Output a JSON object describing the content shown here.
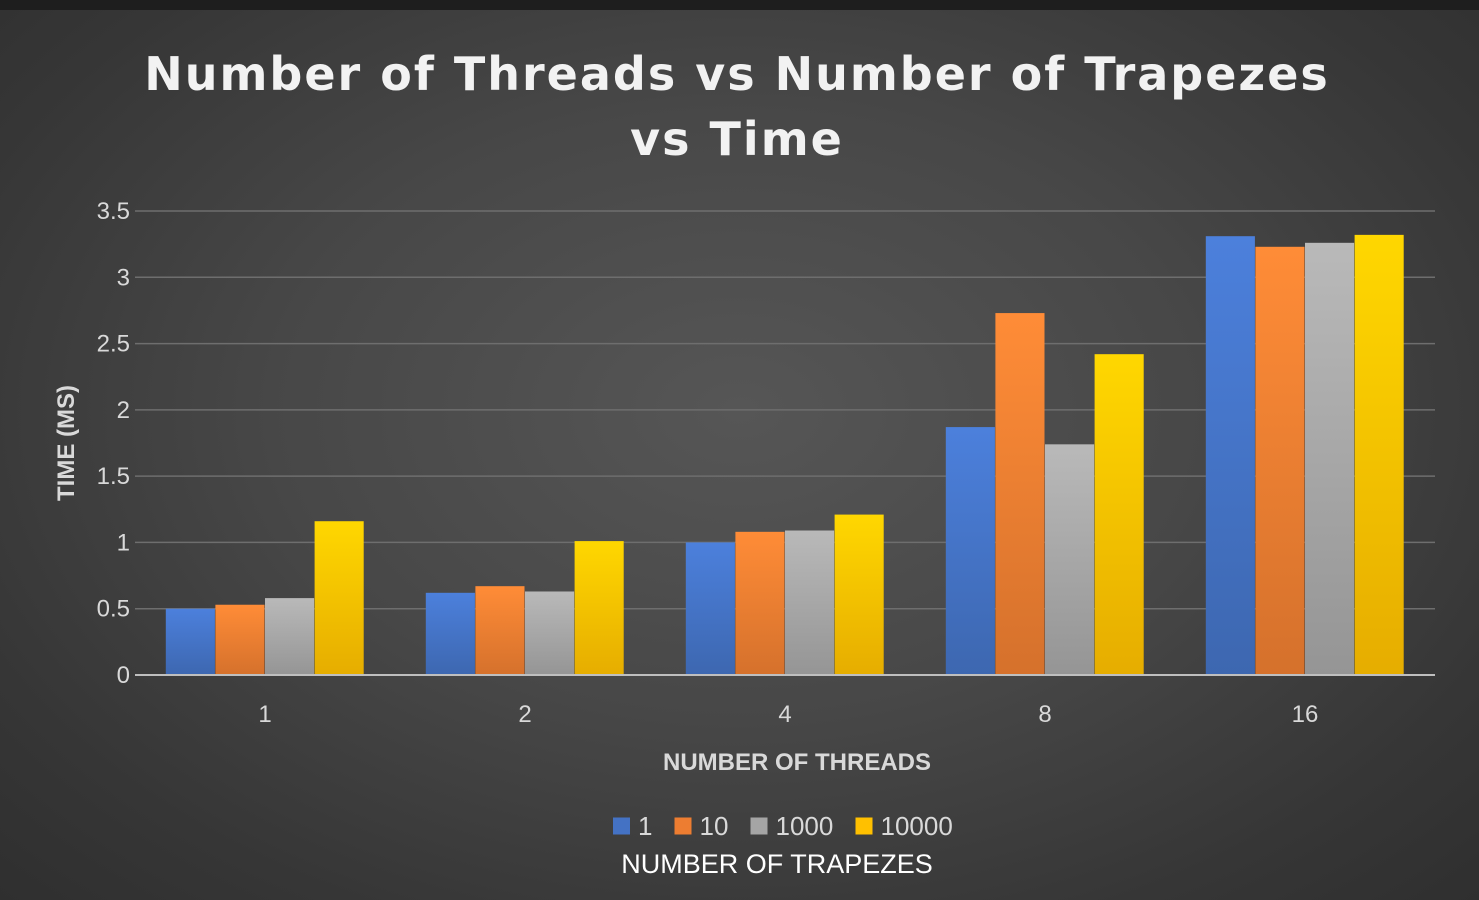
{
  "chart_data": {
    "type": "bar",
    "title_lines": [
      "Number of Threads vs Number of Trapezes",
      "vs Time"
    ],
    "xlabel": "NUMBER OF THREADS",
    "ylabel": "TIME (MS)",
    "categories": [
      "1",
      "2",
      "4",
      "8",
      "16"
    ],
    "ylim": [
      0,
      3.5
    ],
    "yticks": [
      "0",
      "0.5",
      "1",
      "1.5",
      "2",
      "2.5",
      "3",
      "3.5"
    ],
    "grid": true,
    "legend_title": "NUMBER OF TRAPEZES",
    "legend_position": "bottom",
    "series": [
      {
        "name": "1",
        "color": "#4472c4",
        "values": [
          0.5,
          0.62,
          1.0,
          1.87,
          3.31
        ]
      },
      {
        "name": "10",
        "color": "#ed7d31",
        "values": [
          0.53,
          0.67,
          1.08,
          2.73,
          3.23
        ]
      },
      {
        "name": "1000",
        "color": "#a5a5a5",
        "values": [
          0.58,
          0.63,
          1.09,
          1.74,
          3.26
        ]
      },
      {
        "name": "10000",
        "color": "#ffc000",
        "values": [
          1.16,
          1.01,
          1.21,
          2.42,
          3.32
        ]
      }
    ]
  }
}
